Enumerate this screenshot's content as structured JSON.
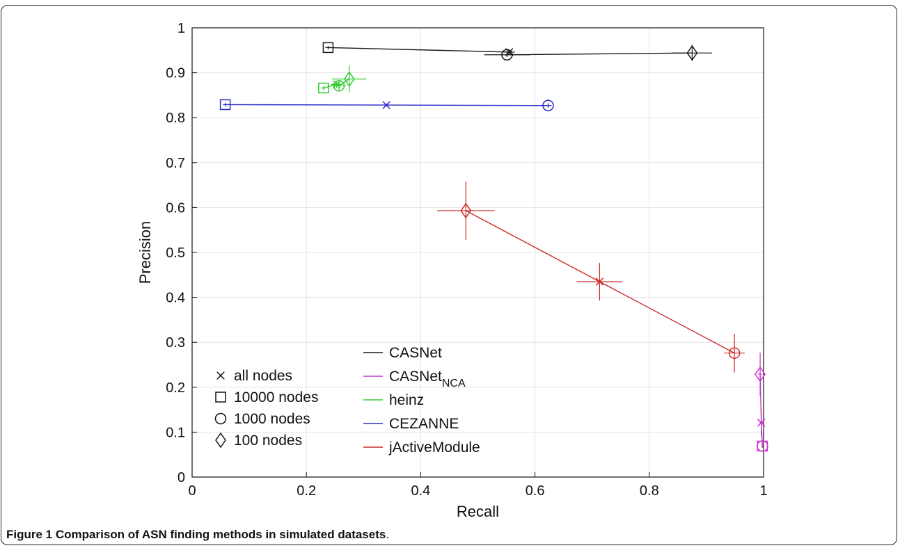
{
  "caption": {
    "label": "Figure 1",
    "text": "Comparison of ASN finding methods in simulated datasets",
    "end": "."
  },
  "chart_data": {
    "type": "scatter",
    "title": "",
    "xlabel": "Recall",
    "ylabel": "Precision",
    "xlim": [
      0,
      1
    ],
    "ylim": [
      0,
      1
    ],
    "x_ticks": [
      "0",
      "0.2",
      "0.4",
      "0.6",
      "0.8",
      "1"
    ],
    "y_ticks": [
      "0",
      "0.1",
      "0.2",
      "0.3",
      "0.4",
      "0.5",
      "0.6",
      "0.7",
      "0.8",
      "0.9",
      "1"
    ],
    "grid": true,
    "marker_legend": [
      {
        "marker": "x",
        "label": "all nodes"
      },
      {
        "marker": "square",
        "label": "10000 nodes"
      },
      {
        "marker": "circle",
        "label": "1000 nodes"
      },
      {
        "marker": "diamond",
        "label": "100 nodes"
      }
    ],
    "series": [
      {
        "name": "CASNet",
        "name_sub": "",
        "color": "#1a1a1a",
        "points": [
          {
            "marker": "square",
            "x": 0.238,
            "y": 0.956,
            "xerr": 0.005,
            "yerr": 0.004
          },
          {
            "marker": "x",
            "x": 0.555,
            "y": 0.946,
            "xerr": 0.01,
            "yerr": 0.005
          },
          {
            "marker": "circle",
            "x": 0.551,
            "y": 0.94,
            "xerr": 0.04,
            "yerr": 0.005
          },
          {
            "marker": "diamond",
            "x": 0.875,
            "y": 0.944,
            "xerr": 0.035,
            "yerr": 0.018
          }
        ]
      },
      {
        "name": "CASNet",
        "name_sub": "NCA",
        "color": "#cc33cc",
        "points": [
          {
            "marker": "diamond",
            "x": 0.994,
            "y": 0.229,
            "xerr": 0.004,
            "yerr": 0.048
          },
          {
            "marker": "x",
            "x": 0.996,
            "y": 0.121,
            "xerr": 0.003,
            "yerr": 0.03
          },
          {
            "marker": "circle",
            "x": 0.998,
            "y": 0.069,
            "xerr": 0.002,
            "yerr": 0.004
          },
          {
            "marker": "square",
            "x": 0.998,
            "y": 0.069,
            "xerr": 0.002,
            "yerr": 0.004
          }
        ]
      },
      {
        "name": "heinz",
        "name_sub": "",
        "color": "#33cc33",
        "points": [
          {
            "marker": "square",
            "x": 0.23,
            "y": 0.866,
            "xerr": 0.005,
            "yerr": 0.005
          },
          {
            "marker": "x",
            "x": 0.253,
            "y": 0.874,
            "xerr": 0.01,
            "yerr": 0.008
          },
          {
            "marker": "circle",
            "x": 0.257,
            "y": 0.871,
            "xerr": 0.012,
            "yerr": 0.01
          },
          {
            "marker": "diamond",
            "x": 0.275,
            "y": 0.886,
            "xerr": 0.03,
            "yerr": 0.03
          }
        ]
      },
      {
        "name": "CEZANNE",
        "name_sub": "",
        "color": "#2a2ac8",
        "points": [
          {
            "marker": "square",
            "x": 0.058,
            "y": 0.829,
            "xerr": 0.004,
            "yerr": 0.004
          },
          {
            "marker": "x",
            "x": 0.34,
            "y": 0.828,
            "xerr": 0.004,
            "yerr": 0.003
          },
          {
            "marker": "circle",
            "x": 0.623,
            "y": 0.827,
            "xerr": 0.006,
            "yerr": 0.005
          }
        ]
      },
      {
        "name": "jActiveModule",
        "name_sub": "",
        "color": "#cc2a2a",
        "points": [
          {
            "marker": "diamond",
            "x": 0.479,
            "y": 0.593,
            "xerr": 0.05,
            "yerr": 0.065
          },
          {
            "marker": "x",
            "x": 0.713,
            "y": 0.435,
            "xerr": 0.04,
            "yerr": 0.042
          },
          {
            "marker": "circle",
            "x": 0.949,
            "y": 0.276,
            "xerr": 0.018,
            "yerr": 0.043
          }
        ]
      }
    ]
  }
}
